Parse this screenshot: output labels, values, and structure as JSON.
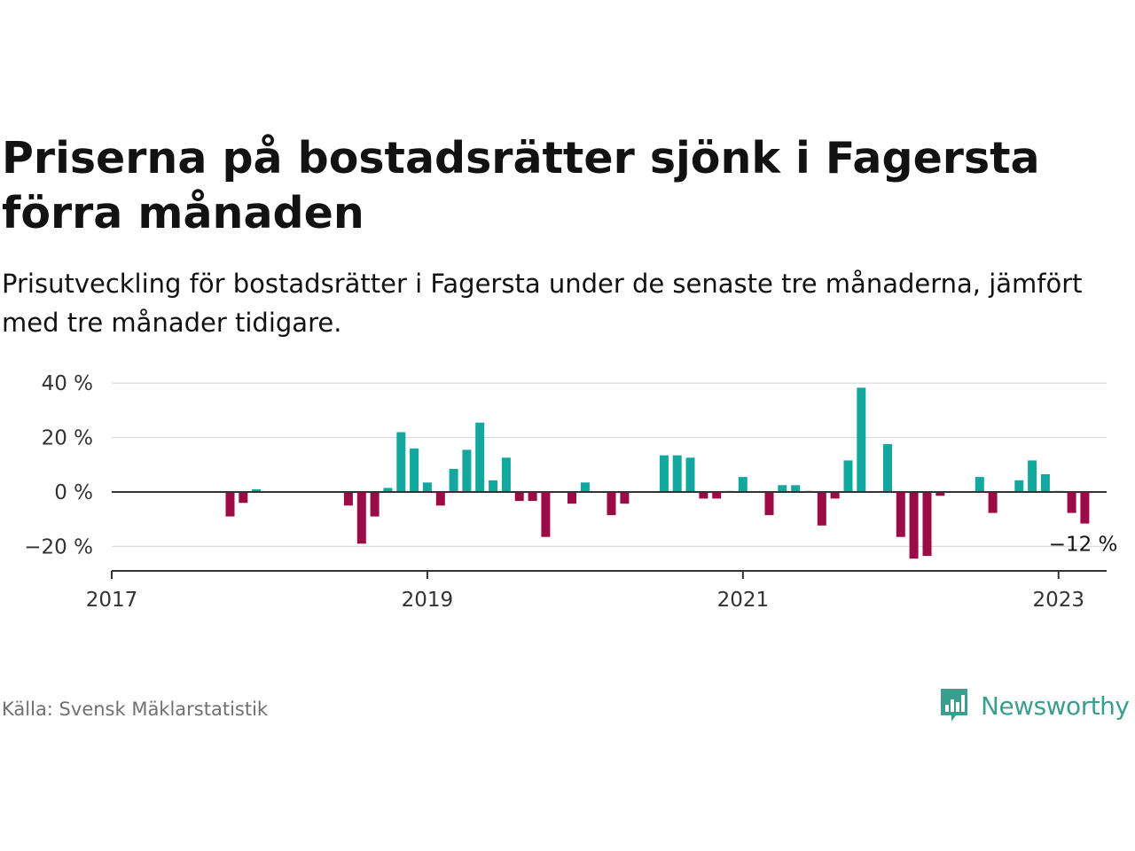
{
  "title": "Priserna på bostadsrätter sjönk i Fagersta förra månaden",
  "subtitle": "Prisutveckling för bostadsrätter i Fagersta under de senaste tre månaderna, jämfört med tre månader tidigare.",
  "source": "Källa: Svensk Mäklarstatistik",
  "brand": "Newsworthy",
  "colors": {
    "positive": "#13a89e",
    "negative": "#9b0b45",
    "brand": "#3a9e8e"
  },
  "icons": {
    "logo": "bar-chart-speech-bubble-icon"
  },
  "chart_data": {
    "type": "bar",
    "x_start": "2017-01",
    "x_unit": "month",
    "x_ticks": [
      "2017",
      "2019",
      "2021",
      "2023"
    ],
    "y_ticks": [
      "40 %",
      "20 %",
      "0 %",
      "−20 %"
    ],
    "ylim": [
      -29,
      42
    ],
    "grid": true,
    "values": [
      null,
      null,
      null,
      null,
      null,
      null,
      null,
      null,
      null,
      -9,
      -4,
      1,
      null,
      null,
      null,
      null,
      null,
      null,
      -5,
      -19,
      -9,
      1.5,
      22,
      16,
      3.5,
      -5,
      8.5,
      15.5,
      25.5,
      4.3,
      12.6,
      -3.3,
      -3.3,
      -16.5,
      null,
      -4.3,
      3.5,
      null,
      -8.5,
      -4.3,
      null,
      null,
      13.5,
      13.5,
      12.6,
      -2.4,
      -2.4,
      0.4,
      5.5,
      null,
      -8.5,
      2.5,
      2.5,
      0.4,
      -12.3,
      -2.4,
      11.6,
      38.3,
      null,
      17.6,
      -16.5,
      -24.5,
      -23.5,
      -1.4,
      null,
      null,
      5.5,
      -7.7,
      null,
      4.3,
      11.6,
      6.5,
      0.4,
      -7.7,
      -11.6
    ],
    "last_label": "−12 %"
  }
}
